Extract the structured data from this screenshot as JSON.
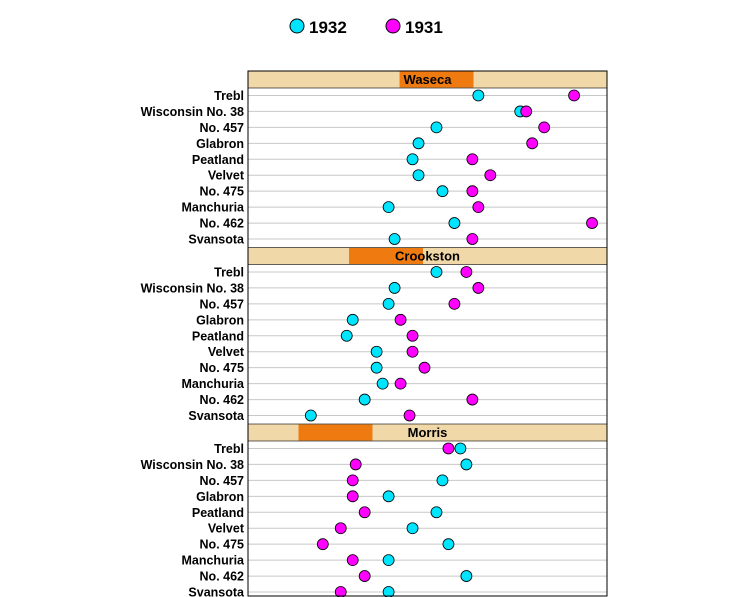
{
  "chart_data": {
    "type": "scatter",
    "description_note": "",
    "legend": [
      {
        "name": "1932",
        "color": "#00e5ff"
      },
      {
        "name": "1931",
        "color": "#ff00ff"
      }
    ],
    "legend_placement": "top",
    "categories": [
      "Trebl",
      "Wisconsin No. 38",
      "No. 457",
      "Glabron",
      "Peatland",
      "Velvet",
      "No. 475",
      "Manchuria",
      "No. 462",
      "Svansota"
    ],
    "xlim": [
      10,
      70
    ],
    "panels": [
      {
        "title": "Waseca",
        "strip_color": "#f0d8a8",
        "indicator_color": "#ee7a10",
        "series": [
          {
            "name": "1932",
            "values": [
              48.5,
              55.5,
              41.5,
              38.5,
              37.5,
              38.5,
              42.5,
              33.5,
              44.5,
              34.5
            ]
          },
          {
            "name": "1931",
            "values": [
              64.5,
              56.5,
              59.5,
              57.5,
              47.5,
              50.5,
              47.5,
              48.5,
              67.5,
              47.5
            ]
          }
        ]
      },
      {
        "title": "Crookston",
        "strip_color": "#f0d8a8",
        "indicator_color": "#ee7a10",
        "series": [
          {
            "name": "1932",
            "values": [
              41.5,
              34.5,
              33.5,
              27.5,
              26.5,
              31.5,
              31.5,
              32.5,
              29.5,
              20.5
            ]
          },
          {
            "name": "1931",
            "values": [
              46.5,
              48.5,
              44.5,
              35.5,
              37.5,
              37.5,
              39.5,
              35.5,
              47.5,
              37.0
            ]
          }
        ]
      },
      {
        "title": "Morris",
        "strip_color": "#f0d8a8",
        "indicator_color": "#ee7a10",
        "series": [
          {
            "name": "1932",
            "values": [
              45.5,
              46.5,
              42.5,
              33.5,
              41.5,
              37.5,
              43.5,
              33.5,
              46.5,
              33.5
            ]
          },
          {
            "name": "1931",
            "values": [
              43.5,
              28.0,
              27.5,
              27.5,
              29.5,
              25.5,
              22.5,
              27.5,
              29.5,
              25.5
            ]
          }
        ]
      }
    ]
  }
}
